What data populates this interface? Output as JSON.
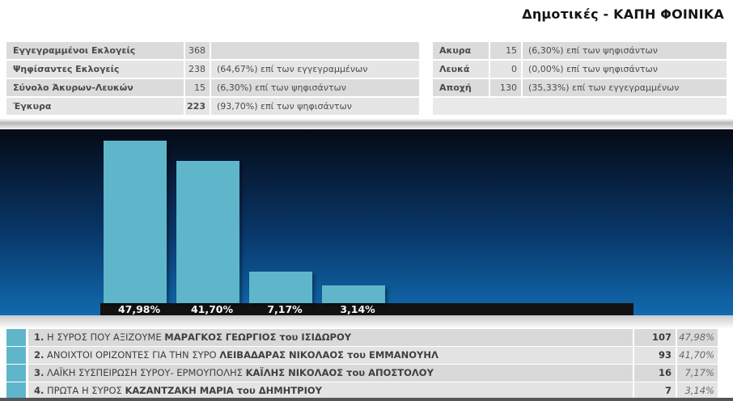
{
  "title": "Δημοτικές - ΚΑΠΗ ΦΟΙΝΙΚΑ",
  "stats_left": {
    "rows": [
      {
        "label": "Εγγεγραμμένοι Εκλογείς",
        "value": "368",
        "note": ""
      },
      {
        "label": "Ψηφίσαντες Εκλογείς",
        "value": "238",
        "note": "(64,67%) επί των εγγεγραμμένων"
      },
      {
        "label": "Σύνολο Άκυρων-Λευκών",
        "value": "15",
        "note": "(6,30%) επί των ψηφισάντων"
      },
      {
        "label": "Έγκυρα",
        "value": "223",
        "note": "(93,70%) επί των ψηφισάντων",
        "value_bold": true
      }
    ]
  },
  "stats_right": {
    "rows": [
      {
        "label": "Ακυρα",
        "value": "15",
        "note": "(6,30%) επί των ψηφισάντων"
      },
      {
        "label": "Λευκά",
        "value": "0",
        "note": "(0,00%) επί των ψηφισάντων"
      },
      {
        "label": "Αποχή",
        "value": "130",
        "note": "(35,33%) επί των εγγεγραμμένων"
      }
    ]
  },
  "chart_data": {
    "type": "bar",
    "title": "",
    "categories": [
      "Η ΣΥΡΟΣ ΠΟΥ ΑΞΙΖΟΥΜΕ — ΜΑΡΑΓΚΟΣ ΓΕΩΡΓΙΟΣ",
      "ΑΝΟΙΧΤΟΙ ΟΡΙΖΟΝΤΕΣ ΓΙΑ ΤΗΝ ΣΥΡΟ — ΛΕΙΒΑΔΑΡΑΣ ΝΙΚΟΛΑΟΣ",
      "ΛΑΪΚΗ ΣΥΣΠΕΙΡΩΣΗ ΣΥΡΟΥ- ΕΡΜΟΥΠΟΛΗΣ — ΚΑΪΛΗΣ ΝΙΚΟΛΑΟΣ",
      "ΠΡΩΤΑ Η ΣΥΡΟΣ — ΚΑΖΑΝΤΖΑΚΗ ΜΑΡΙΑ"
    ],
    "values": [
      47.98,
      41.7,
      7.17,
      3.14
    ],
    "value_labels": [
      "47,98%",
      "41,70%",
      "7,17%",
      "3,14%"
    ],
    "votes": [
      107,
      93,
      16,
      7
    ],
    "ylabel": "",
    "xlabel": "",
    "grid": false,
    "legend": false,
    "bar_color": "#5fb6ca",
    "label_strip_color": "#121212",
    "background_top": "#050a16",
    "background_bottom": "#1169ae"
  },
  "results": {
    "rows": [
      {
        "rank": "1.",
        "party": "Η ΣΥΡΟΣ ΠΟΥ ΑΞΙΖΟΥΜΕ",
        "candidate": "ΜΑΡΑΓΚΟΣ ΓΕΩΡΓΙΟΣ του ΙΣΙΔΩΡΟΥ",
        "votes": "107",
        "pct": "47,98%"
      },
      {
        "rank": "2.",
        "party": "ΑΝΟΙΧΤΟΙ ΟΡΙΖΟΝΤΕΣ ΓΙΑ ΤΗΝ ΣΥΡΟ",
        "candidate": "ΛΕΙΒΑΔΑΡΑΣ ΝΙΚΟΛΑΟΣ του ΕΜΜΑΝΟΥΗΛ",
        "votes": "93",
        "pct": "41,70%"
      },
      {
        "rank": "3.",
        "party": "ΛΑΪΚΗ ΣΥΣΠΕΙΡΩΣΗ ΣΥΡΟΥ- ΕΡΜΟΥΠΟΛΗΣ",
        "candidate": "ΚΑΪΛΗΣ ΝΙΚΟΛΑΟΣ του ΑΠΟΣΤΟΛΟΥ",
        "votes": "16",
        "pct": "7,17%"
      },
      {
        "rank": "4.",
        "party": "ΠΡΩΤΑ Η ΣΥΡΟΣ",
        "candidate": "ΚΑΖΑΝΤΖΑΚΗ ΜΑΡΙΑ του ΔΗΜΗΤΡΙΟΥ",
        "votes": "7",
        "pct": "3,14%"
      }
    ]
  },
  "colors": {
    "accent_teal": "#5fb6ca",
    "row_dark": "#d9d9d9",
    "row_light": "#e3e3e3",
    "strip_black": "#121212"
  }
}
